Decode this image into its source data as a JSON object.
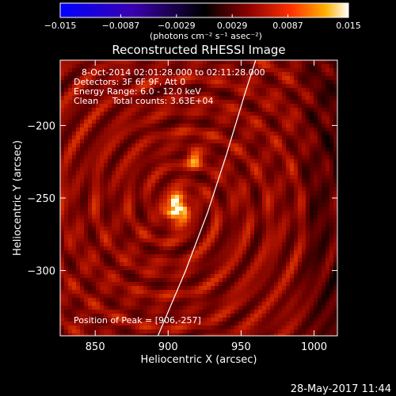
{
  "chart_data": {
    "type": "heatmap",
    "title": "Reconstructed RHESSI Image",
    "xlabel": "Heliocentric X (arcsec)",
    "ylabel": "Heliocentric Y (arcsec)",
    "xlim": [
      826,
      1016
    ],
    "ylim": [
      -345,
      -155
    ],
    "xticks": [
      "850",
      "900",
      "950",
      "1000"
    ],
    "xtick_values": [
      850,
      900,
      950,
      1000
    ],
    "yticks": [
      "−200",
      "−250",
      "−300"
    ],
    "ytick_values": [
      -200,
      -250,
      -300
    ],
    "colorbar": {
      "range": [
        -0.015,
        0.015
      ],
      "ticks": [
        "−0.015",
        "−0.0087",
        "−0.0029",
        "0.0029",
        "0.0087",
        "0.015"
      ],
      "tick_values": [
        -0.015,
        -0.0087,
        -0.0029,
        0.0029,
        0.0087,
        0.015
      ],
      "unit_label": "(photons cm⁻² s⁻¹ asec⁻²)"
    },
    "annotations": [
      "8-Oct-2014 02:01:28.000 to 02:11:28.000",
      "Detectors: 3F 6F 9F, Att 0",
      "Energy Range: 6.0 - 12.0 keV",
      "Clean     Total counts: 3.63E+04"
    ],
    "peak_label": "Position of Peak = [906,-257]",
    "peak": [
      906,
      -257
    ],
    "secondary_source": [
      918,
      -222
    ],
    "limb_curve": [
      [
        893,
        -345
      ],
      [
        912,
        -300
      ],
      [
        927,
        -260
      ],
      [
        940,
        -220
      ],
      [
        952,
        -180
      ],
      [
        960,
        -155
      ]
    ]
  },
  "footer": {
    "date": "28-May-2017 11:44"
  }
}
